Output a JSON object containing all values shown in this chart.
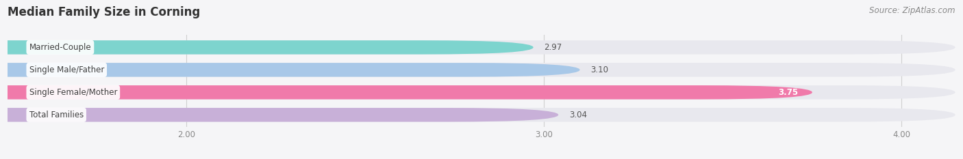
{
  "title": "Median Family Size in Corning",
  "source": "Source: ZipAtlas.com",
  "categories": [
    "Married-Couple",
    "Single Male/Father",
    "Single Female/Mother",
    "Total Families"
  ],
  "values": [
    2.97,
    3.1,
    3.75,
    3.04
  ],
  "bar_colors": [
    "#7dd4ce",
    "#a8c8e8",
    "#f07aaa",
    "#c8b0d8"
  ],
  "bar_bg_colors": [
    "#e8e8ee",
    "#e8e8ee",
    "#e8e8ee",
    "#e8e8ee"
  ],
  "value_label_colors": [
    "#555555",
    "#555555",
    "#ffffff",
    "#555555"
  ],
  "xlim_min": 1.5,
  "xlim_max": 4.15,
  "data_min": 0.0,
  "xticks": [
    2.0,
    3.0,
    4.0
  ],
  "xtick_labels": [
    "2.00",
    "3.00",
    "4.00"
  ],
  "bar_height": 0.62,
  "bar_gap": 0.38,
  "background_color": "#f5f5f7",
  "title_fontsize": 12,
  "label_fontsize": 8.5,
  "value_fontsize": 8.5,
  "source_fontsize": 8.5
}
